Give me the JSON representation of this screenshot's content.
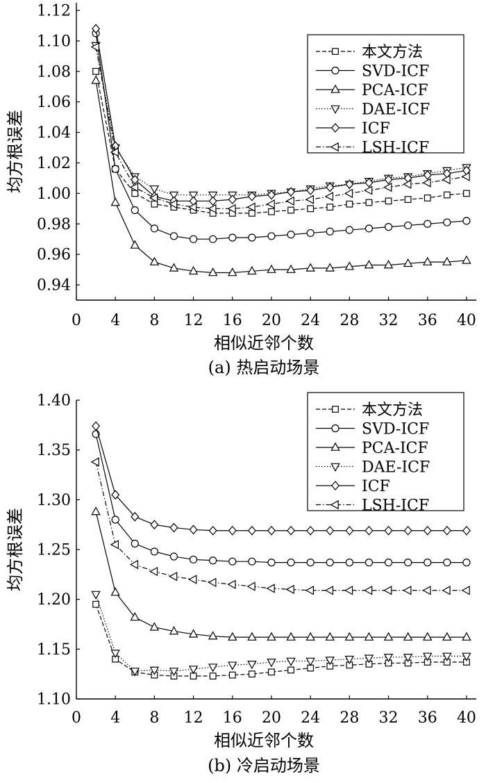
{
  "chart_data": [
    {
      "type": "line",
      "caption": "(a) 热启动场景",
      "xlabel": "相似近邻个数",
      "ylabel": "均方根误差",
      "xlim": [
        0,
        41
      ],
      "ylim": [
        0.93,
        1.125
      ],
      "xticks": [
        0,
        4,
        8,
        12,
        16,
        20,
        24,
        28,
        32,
        36,
        40
      ],
      "yticks": [
        0.94,
        0.96,
        0.98,
        1.0,
        1.02,
        1.04,
        1.06,
        1.08,
        1.1,
        1.12
      ],
      "ytick_labels": [
        "0.94",
        "0.96",
        "0.98",
        "1.00",
        "1.02",
        "1.04",
        "1.06",
        "1.08",
        "1.10",
        "1.12"
      ],
      "x": [
        2,
        4,
        6,
        8,
        10,
        12,
        14,
        16,
        18,
        20,
        22,
        24,
        26,
        28,
        30,
        32,
        34,
        36,
        38,
        40
      ],
      "legend_position": "top-right",
      "series": [
        {
          "name": "本文方法",
          "marker": "square",
          "dash": "dashed",
          "values": [
            1.08,
            1.016,
            1.0,
            0.993,
            0.991,
            0.989,
            0.987,
            0.987,
            0.987,
            0.988,
            0.989,
            0.99,
            0.991,
            0.993,
            0.994,
            0.995,
            0.996,
            0.997,
            0.999,
            1.0
          ]
        },
        {
          "name": "SVD-ICF",
          "marker": "circle",
          "dash": "solid",
          "values": [
            1.105,
            1.016,
            0.989,
            0.977,
            0.972,
            0.97,
            0.97,
            0.971,
            0.971,
            0.972,
            0.973,
            0.974,
            0.975,
            0.976,
            0.977,
            0.978,
            0.979,
            0.98,
            0.981,
            0.982
          ]
        },
        {
          "name": "PCA-ICF",
          "marker": "triangle-up",
          "dash": "solid",
          "values": [
            1.074,
            0.994,
            0.966,
            0.955,
            0.951,
            0.949,
            0.948,
            0.948,
            0.949,
            0.95,
            0.95,
            0.951,
            0.951,
            0.952,
            0.953,
            0.953,
            0.954,
            0.955,
            0.955,
            0.956
          ]
        },
        {
          "name": "DAE-ICF",
          "marker": "triangle-down",
          "dash": "dotted",
          "values": [
            1.097,
            1.03,
            1.011,
            1.003,
            0.999,
            0.999,
            0.999,
            0.999,
            0.999,
            1.0,
            1.001,
            1.003,
            1.005,
            1.006,
            1.008,
            1.01,
            1.011,
            1.013,
            1.015,
            1.017
          ]
        },
        {
          "name": "ICF",
          "marker": "diamond",
          "dash": "solid",
          "values": [
            1.108,
            1.031,
            1.009,
            0.998,
            0.995,
            0.995,
            0.995,
            0.996,
            0.998,
            0.999,
            1.001,
            1.002,
            1.004,
            1.006,
            1.007,
            1.009,
            1.01,
            1.012,
            1.013,
            1.015
          ]
        },
        {
          "name": "LSH-ICF",
          "marker": "triangle-left",
          "dash": "dashdot",
          "values": [
            1.096,
            1.027,
            1.004,
            0.997,
            0.993,
            0.991,
            0.99,
            0.99,
            0.991,
            0.993,
            0.995,
            0.996,
            0.998,
            1.0,
            1.002,
            1.004,
            1.006,
            1.007,
            1.009,
            1.011
          ]
        }
      ]
    },
    {
      "type": "line",
      "caption": "(b) 冷启动场景",
      "xlabel": "相似近邻个数",
      "ylabel": "均方根误差",
      "xlim": [
        0,
        41
      ],
      "ylim": [
        1.1,
        1.4
      ],
      "xticks": [
        0,
        4,
        8,
        12,
        16,
        20,
        24,
        28,
        32,
        36,
        40
      ],
      "yticks": [
        1.1,
        1.15,
        1.2,
        1.25,
        1.3,
        1.35,
        1.4
      ],
      "ytick_labels": [
        "1.10",
        "1.15",
        "1.20",
        "1.25",
        "1.30",
        "1.35",
        "1.40"
      ],
      "x": [
        2,
        4,
        6,
        8,
        10,
        12,
        14,
        16,
        18,
        20,
        22,
        24,
        26,
        28,
        30,
        32,
        34,
        36,
        38,
        40
      ],
      "legend_position": "top-right",
      "series": [
        {
          "name": "本文方法",
          "marker": "square",
          "dash": "dashed",
          "values": [
            1.195,
            1.14,
            1.127,
            1.124,
            1.123,
            1.123,
            1.123,
            1.124,
            1.125,
            1.127,
            1.129,
            1.131,
            1.133,
            1.134,
            1.135,
            1.136,
            1.136,
            1.137,
            1.137,
            1.137
          ]
        },
        {
          "name": "SVD-ICF",
          "marker": "circle",
          "dash": "solid",
          "values": [
            1.366,
            1.28,
            1.256,
            1.248,
            1.243,
            1.24,
            1.239,
            1.238,
            1.238,
            1.237,
            1.237,
            1.237,
            1.237,
            1.237,
            1.237,
            1.237,
            1.237,
            1.237,
            1.237,
            1.237
          ]
        },
        {
          "name": "PCA-ICF",
          "marker": "triangle-up",
          "dash": "solid",
          "values": [
            1.288,
            1.207,
            1.182,
            1.172,
            1.168,
            1.165,
            1.163,
            1.162,
            1.162,
            1.162,
            1.162,
            1.162,
            1.162,
            1.162,
            1.162,
            1.162,
            1.162,
            1.162,
            1.162,
            1.162
          ]
        },
        {
          "name": "DAE-ICF",
          "marker": "triangle-down",
          "dash": "dotted",
          "values": [
            1.205,
            1.146,
            1.128,
            1.129,
            1.128,
            1.13,
            1.132,
            1.134,
            1.135,
            1.137,
            1.138,
            1.138,
            1.139,
            1.14,
            1.141,
            1.142,
            1.142,
            1.143,
            1.143,
            1.143
          ]
        },
        {
          "name": "ICF",
          "marker": "diamond",
          "dash": "solid",
          "values": [
            1.374,
            1.305,
            1.283,
            1.275,
            1.272,
            1.27,
            1.269,
            1.269,
            1.269,
            1.269,
            1.269,
            1.269,
            1.269,
            1.269,
            1.269,
            1.269,
            1.269,
            1.269,
            1.269,
            1.269
          ]
        },
        {
          "name": "LSH-ICF",
          "marker": "triangle-left",
          "dash": "dashdot",
          "values": [
            1.338,
            1.255,
            1.235,
            1.228,
            1.223,
            1.22,
            1.217,
            1.215,
            1.213,
            1.211,
            1.21,
            1.209,
            1.209,
            1.209,
            1.209,
            1.209,
            1.209,
            1.209,
            1.209,
            1.209
          ]
        }
      ]
    }
  ]
}
